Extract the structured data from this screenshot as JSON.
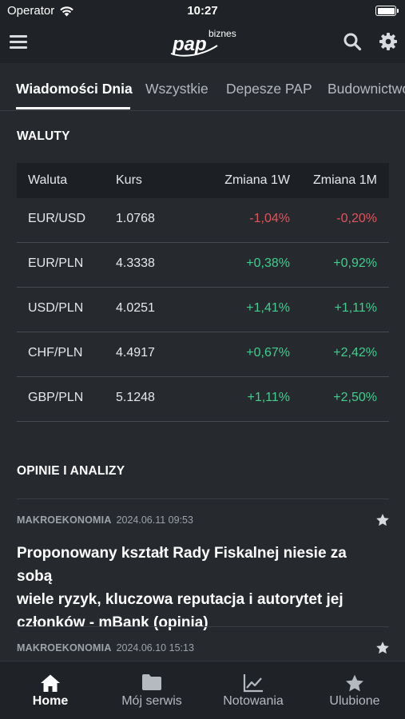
{
  "status_bar": {
    "carrier": "Operator",
    "time": "10:27"
  },
  "header": {
    "logo_text": "pap",
    "logo_sub": "biznes"
  },
  "tabs": [
    {
      "label": "Wiadomości Dnia"
    },
    {
      "label": "Wszystkie"
    },
    {
      "label": "Depesze PAP"
    },
    {
      "label": "Budownictwo"
    }
  ],
  "currencies": {
    "title": "WALUTY",
    "headers": [
      "Waluta",
      "Kurs",
      "Zmiana 1W",
      "Zmiana 1M"
    ],
    "rows": [
      {
        "pair": "EUR/USD",
        "rate": "1.0768",
        "change_1w": "-1,04%",
        "change_1m": "-0,20%"
      },
      {
        "pair": "EUR/PLN",
        "rate": "4.3338",
        "change_1w": "+0,38%",
        "change_1m": "+0,92%"
      },
      {
        "pair": "USD/PLN",
        "rate": "4.0251",
        "change_1w": "+1,41%",
        "change_1m": "+1,11%"
      },
      {
        "pair": "CHF/PLN",
        "rate": "4.4917",
        "change_1w": "+0,67%",
        "change_1m": "+2,42%"
      },
      {
        "pair": "GBP/PLN",
        "rate": "5.1248",
        "change_1w": "+1,11%",
        "change_1m": "+2,50%"
      }
    ]
  },
  "opinions": {
    "title": "OPINIE I ANALIZY",
    "items": [
      {
        "category": "MAKROEKONOMIA",
        "date": "2024.06.11 09:53",
        "title_lines": [
          "Proponowany kształt Rady Fiskalnej niesie za sobą",
          "wiele ryzyk, kluczowa reputacja i autorytet jej",
          "członków - mBank (opinia)"
        ]
      },
      {
        "category": "MAKROEKONOMIA",
        "date": "2024.06.10 15:13"
      }
    ]
  },
  "bottom_nav": [
    {
      "label": "Home",
      "icon": "home-icon"
    },
    {
      "label": "Mój serwis",
      "icon": "folder-icon"
    },
    {
      "label": "Notowania",
      "icon": "chart-icon"
    },
    {
      "label": "Ulubione",
      "icon": "star-icon"
    }
  ],
  "colors": {
    "negative": "#e0555b",
    "positive": "#3fcf8e",
    "background": "#26292e"
  }
}
